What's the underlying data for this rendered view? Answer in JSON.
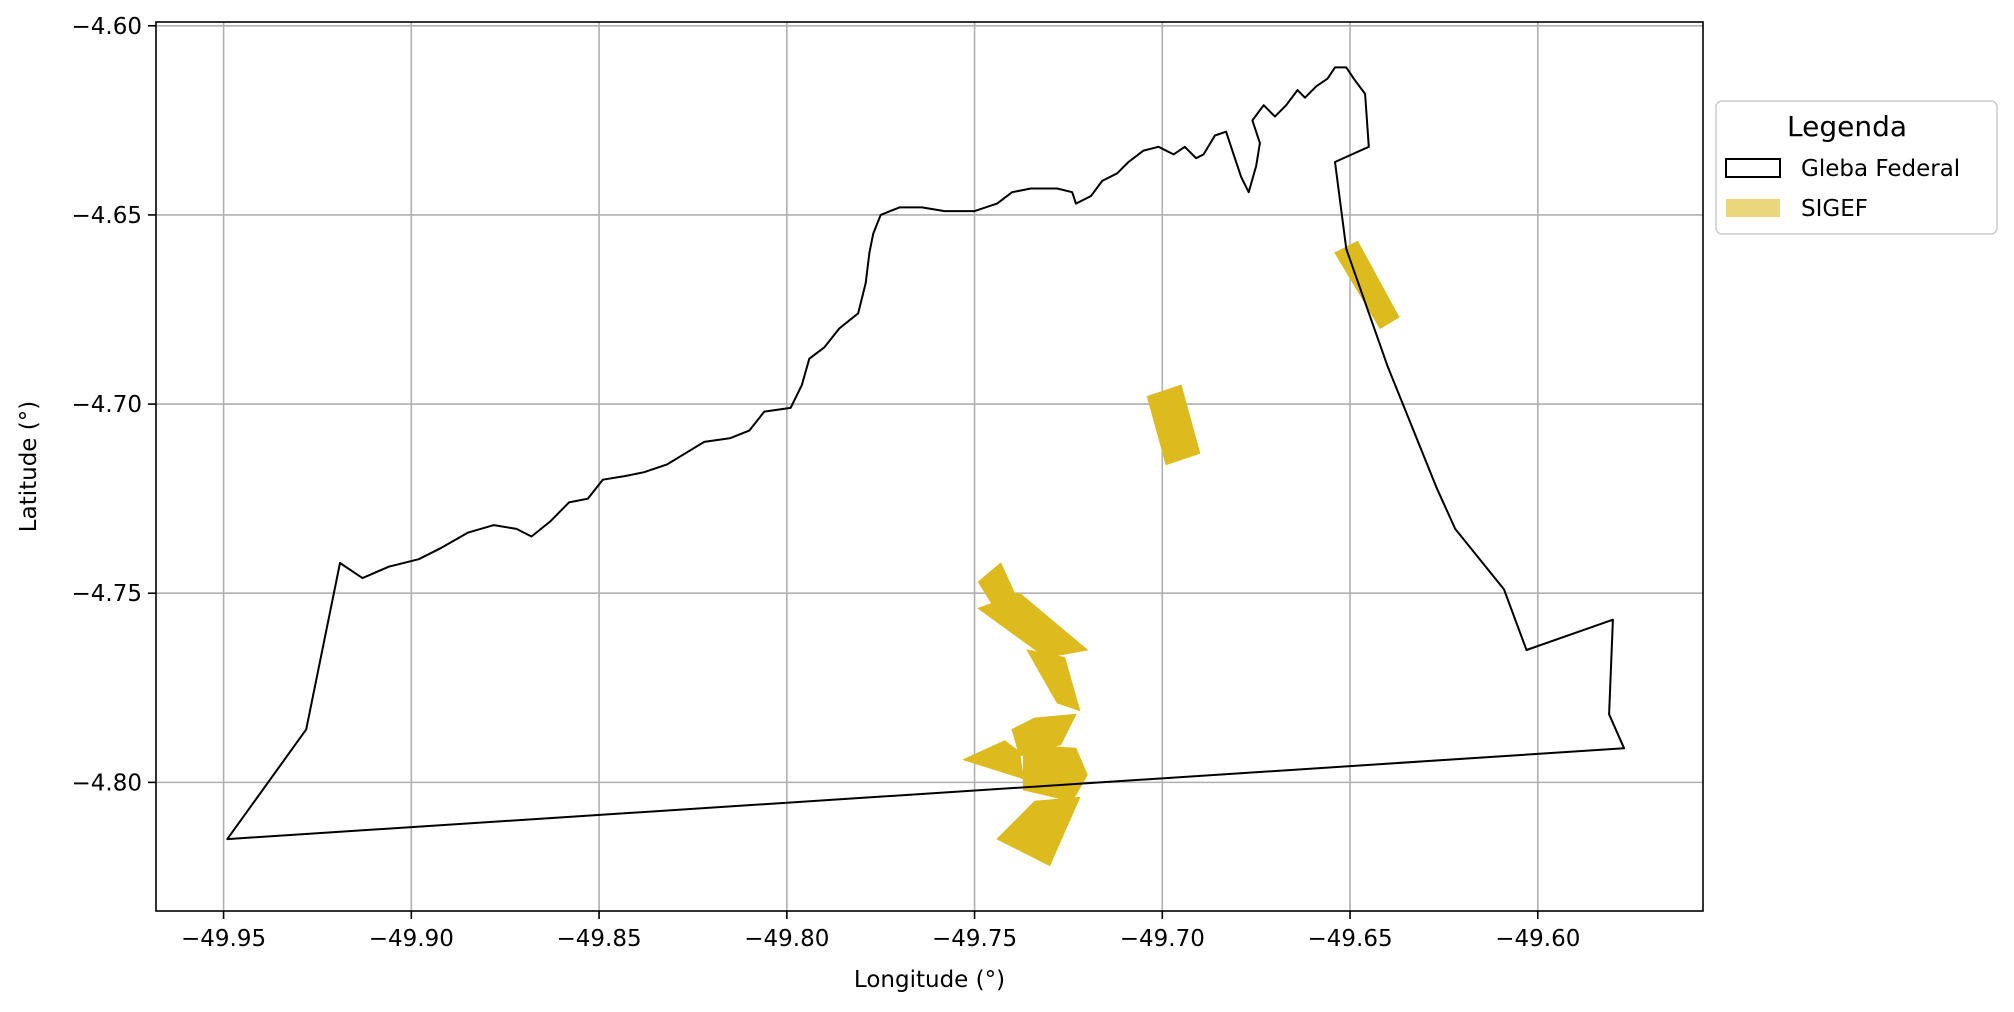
{
  "chart_data": {
    "type": "map",
    "xlabel": "Longitude (°)",
    "ylabel": "Latitude (°)",
    "xlim": [
      -49.968,
      -49.556
    ],
    "ylim": [
      -4.834,
      -4.599
    ],
    "xticks": [
      -49.95,
      -49.9,
      -49.85,
      -49.8,
      -49.75,
      -49.7,
      -49.65,
      -49.6
    ],
    "xtick_labels": [
      "−49.95",
      "−49.90",
      "−49.85",
      "−49.80",
      "−49.75",
      "−49.70",
      "−49.65",
      "−49.60"
    ],
    "yticks": [
      -4.6,
      -4.65,
      -4.7,
      -4.75,
      -4.8
    ],
    "ytick_labels": [
      "−4.60",
      "−4.65",
      "−4.70",
      "−4.75",
      "−4.80"
    ],
    "grid": true,
    "legend": {
      "title": "Legenda",
      "placement": "outside-upper-right",
      "entries": [
        {
          "label": "Gleba Federal",
          "style": "outline",
          "color": "#000000"
        },
        {
          "label": "SIGEF",
          "style": "fill",
          "color": "#DDBB1F"
        }
      ]
    },
    "series": [
      {
        "name": "Gleba Federal",
        "kind": "polygon-outline",
        "color": "#000000",
        "coordinates": [
          [
            -49.949,
            -4.815
          ],
          [
            -49.928,
            -4.786
          ],
          [
            -49.919,
            -4.742
          ],
          [
            -49.913,
            -4.746
          ],
          [
            -49.906,
            -4.743
          ],
          [
            -49.898,
            -4.741
          ],
          [
            -49.892,
            -4.738
          ],
          [
            -49.885,
            -4.734
          ],
          [
            -49.878,
            -4.732
          ],
          [
            -49.872,
            -4.733
          ],
          [
            -49.868,
            -4.735
          ],
          [
            -49.863,
            -4.731
          ],
          [
            -49.858,
            -4.726
          ],
          [
            -49.853,
            -4.725
          ],
          [
            -49.849,
            -4.72
          ],
          [
            -49.843,
            -4.719
          ],
          [
            -49.838,
            -4.718
          ],
          [
            -49.832,
            -4.716
          ],
          [
            -49.827,
            -4.713
          ],
          [
            -49.822,
            -4.71
          ],
          [
            -49.815,
            -4.709
          ],
          [
            -49.81,
            -4.707
          ],
          [
            -49.806,
            -4.702
          ],
          [
            -49.799,
            -4.701
          ],
          [
            -49.796,
            -4.695
          ],
          [
            -49.794,
            -4.688
          ],
          [
            -49.79,
            -4.685
          ],
          [
            -49.786,
            -4.68
          ],
          [
            -49.781,
            -4.676
          ],
          [
            -49.779,
            -4.668
          ],
          [
            -49.778,
            -4.66
          ],
          [
            -49.777,
            -4.655
          ],
          [
            -49.775,
            -4.65
          ],
          [
            -49.77,
            -4.648
          ],
          [
            -49.764,
            -4.648
          ],
          [
            -49.758,
            -4.649
          ],
          [
            -49.75,
            -4.649
          ],
          [
            -49.744,
            -4.647
          ],
          [
            -49.74,
            -4.644
          ],
          [
            -49.735,
            -4.643
          ],
          [
            -49.728,
            -4.643
          ],
          [
            -49.724,
            -4.644
          ],
          [
            -49.723,
            -4.647
          ],
          [
            -49.719,
            -4.645
          ],
          [
            -49.716,
            -4.641
          ],
          [
            -49.712,
            -4.639
          ],
          [
            -49.709,
            -4.636
          ],
          [
            -49.705,
            -4.633
          ],
          [
            -49.701,
            -4.632
          ],
          [
            -49.697,
            -4.634
          ],
          [
            -49.694,
            -4.632
          ],
          [
            -49.691,
            -4.635
          ],
          [
            -49.689,
            -4.634
          ],
          [
            -49.686,
            -4.629
          ],
          [
            -49.683,
            -4.628
          ],
          [
            -49.681,
            -4.634
          ],
          [
            -49.679,
            -4.64
          ],
          [
            -49.677,
            -4.644
          ],
          [
            -49.675,
            -4.637
          ],
          [
            -49.674,
            -4.631
          ],
          [
            -49.676,
            -4.625
          ],
          [
            -49.673,
            -4.621
          ],
          [
            -49.67,
            -4.624
          ],
          [
            -49.667,
            -4.621
          ],
          [
            -49.664,
            -4.617
          ],
          [
            -49.662,
            -4.619
          ],
          [
            -49.659,
            -4.616
          ],
          [
            -49.656,
            -4.614
          ],
          [
            -49.654,
            -4.611
          ],
          [
            -49.651,
            -4.611
          ],
          [
            -49.649,
            -4.614
          ],
          [
            -49.646,
            -4.618
          ],
          [
            -49.645,
            -4.632
          ],
          [
            -49.654,
            -4.636
          ],
          [
            -49.651,
            -4.659
          ],
          [
            -49.64,
            -4.69
          ],
          [
            -49.627,
            -4.722
          ],
          [
            -49.622,
            -4.733
          ],
          [
            -49.609,
            -4.749
          ],
          [
            -49.603,
            -4.765
          ],
          [
            -49.58,
            -4.757
          ],
          [
            -49.581,
            -4.782
          ],
          [
            -49.577,
            -4.791
          ],
          [
            -49.949,
            -4.815
          ]
        ]
      },
      {
        "name": "SIGEF",
        "kind": "polygon-fill",
        "color": "#DDBB1F",
        "polygons": [
          [
            [
              -49.654,
              -4.66
            ],
            [
              -49.648,
              -4.657
            ],
            [
              -49.637,
              -4.677
            ],
            [
              -49.642,
              -4.68
            ]
          ],
          [
            [
              -49.704,
              -4.698
            ],
            [
              -49.695,
              -4.695
            ],
            [
              -49.69,
              -4.713
            ],
            [
              -49.699,
              -4.716
            ]
          ],
          [
            [
              -49.749,
              -4.747
            ],
            [
              -49.743,
              -4.742
            ],
            [
              -49.738,
              -4.753
            ],
            [
              -49.744,
              -4.755
            ]
          ],
          [
            [
              -49.749,
              -4.754
            ],
            [
              -49.738,
              -4.75
            ],
            [
              -49.72,
              -4.765
            ],
            [
              -49.731,
              -4.767
            ]
          ],
          [
            [
              -49.736,
              -4.765
            ],
            [
              -49.726,
              -4.767
            ],
            [
              -49.722,
              -4.781
            ],
            [
              -49.728,
              -4.779
            ]
          ],
          [
            [
              -49.74,
              -4.786
            ],
            [
              -49.734,
              -4.783
            ],
            [
              -49.723,
              -4.782
            ],
            [
              -49.727,
              -4.79
            ],
            [
              -49.738,
              -4.793
            ]
          ],
          [
            [
              -49.753,
              -4.794
            ],
            [
              -49.742,
              -4.789
            ],
            [
              -49.738,
              -4.792
            ],
            [
              -49.737,
              -4.799
            ]
          ],
          [
            [
              -49.737,
              -4.79
            ],
            [
              -49.723,
              -4.791
            ],
            [
              -49.72,
              -4.798
            ],
            [
              -49.724,
              -4.805
            ],
            [
              -49.737,
              -4.802
            ]
          ],
          [
            [
              -49.734,
              -4.805
            ],
            [
              -49.722,
              -4.804
            ],
            [
              -49.73,
              -4.822
            ],
            [
              -49.744,
              -4.815
            ]
          ]
        ]
      }
    ]
  }
}
